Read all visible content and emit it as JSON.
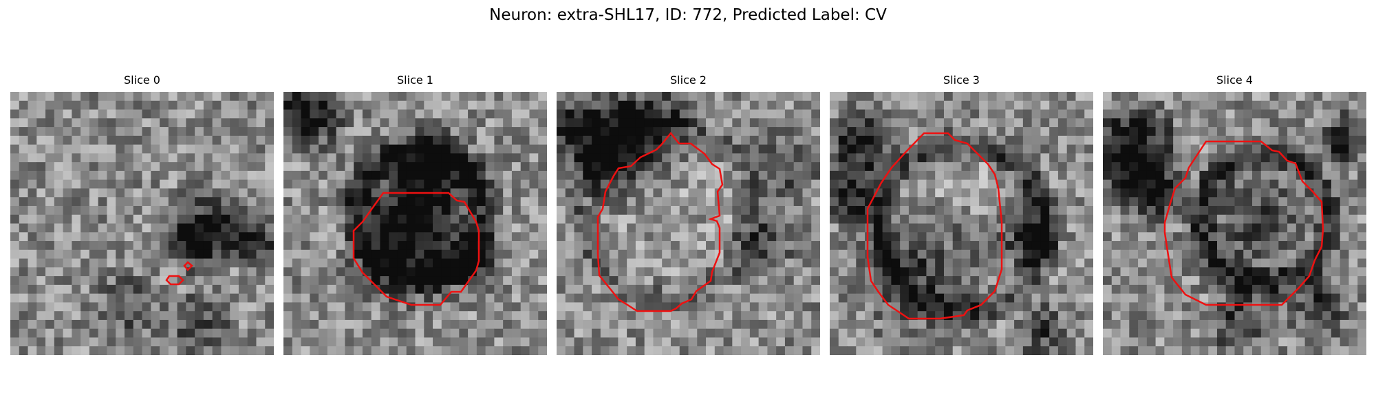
{
  "figure": {
    "title": "Neuron: extra-SHL17, ID: 772, Predicted Label: CV"
  },
  "panels": [
    {
      "title": "Slice 0"
    },
    {
      "title": "Slice 1"
    },
    {
      "title": "Slice 2"
    },
    {
      "title": "Slice 3"
    },
    {
      "title": "Slice 4"
    }
  ],
  "colors": {
    "contour": "#ee1111",
    "background": "#ffffff"
  }
}
